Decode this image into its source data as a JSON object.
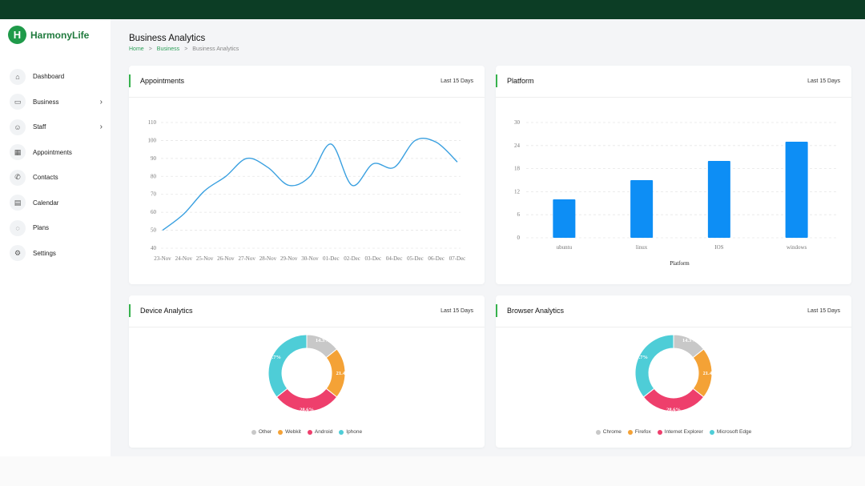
{
  "brand": {
    "name": "HarmonyLife",
    "logo_glyph": "H"
  },
  "nav": [
    {
      "label": "Dashboard",
      "icon": "home-icon",
      "glyph": "⌂",
      "chevron": false
    },
    {
      "label": "Business",
      "icon": "card-icon",
      "glyph": "▭",
      "chevron": true
    },
    {
      "label": "Staff",
      "icon": "users-icon",
      "glyph": "☺",
      "chevron": true
    },
    {
      "label": "Appointments",
      "icon": "calendar-check-icon",
      "glyph": "▦",
      "chevron": false
    },
    {
      "label": "Contacts",
      "icon": "phone-icon",
      "glyph": "✆",
      "chevron": false
    },
    {
      "label": "Calendar",
      "icon": "calendar-icon",
      "glyph": "▤",
      "chevron": false
    },
    {
      "label": "Plans",
      "icon": "chat-icon",
      "glyph": "◌",
      "chevron": false
    },
    {
      "label": "Settings",
      "icon": "gear-icon",
      "glyph": "⚙",
      "chevron": false
    }
  ],
  "page": {
    "title": "Business Analytics",
    "breadcrumb": [
      "Home",
      "Business",
      "Business Analytics"
    ],
    "breadcrumb_sep": ">"
  },
  "cards": {
    "appointments": {
      "title": "Appointments",
      "range": "Last 15 Days"
    },
    "platform": {
      "title": "Platform",
      "range": "Last 15 Days"
    },
    "device": {
      "title": "Device Analytics",
      "range": "Last 15 Days"
    },
    "browser": {
      "title": "Browser Analytics",
      "range": "Last 15 Days"
    }
  },
  "colors": {
    "accent": "#37b24d",
    "line": "#3aa0e0",
    "bar": "#0d8ef5",
    "slices": [
      "#c8c8c8",
      "#f4a236",
      "#ee3f6c",
      "#4ecdd7"
    ]
  },
  "chart_data": [
    {
      "id": "appointments",
      "type": "line",
      "categories": [
        "23-Nov",
        "24-Nov",
        "25-Nov",
        "26-Nov",
        "27-Nov",
        "28-Nov",
        "29-Nov",
        "30-Nov",
        "01-Dec",
        "02-Dec",
        "03-Dec",
        "04-Dec",
        "05-Dec",
        "06-Dec",
        "07-Dec"
      ],
      "values": [
        50,
        59,
        72,
        80,
        90,
        85,
        75,
        80,
        98,
        75,
        87,
        85,
        100,
        99,
        88
      ],
      "ylim": [
        40,
        110
      ],
      "yticks": [
        40,
        50,
        60,
        70,
        80,
        90,
        100,
        110
      ],
      "grid": true
    },
    {
      "id": "platform",
      "type": "bar",
      "categories": [
        "ubuntu",
        "linux",
        "IOS",
        "windows"
      ],
      "values": [
        10,
        15,
        20,
        25
      ],
      "ylim": [
        0,
        30
      ],
      "yticks": [
        0,
        6,
        12,
        18,
        24,
        30
      ],
      "xlabel": "Platform",
      "grid": true
    },
    {
      "id": "device",
      "type": "pie",
      "categories": [
        "Other",
        "Webkit",
        "Android",
        "Iphone"
      ],
      "values": [
        14.3,
        21.4,
        28.6,
        35.7
      ],
      "labels": [
        "14.3%",
        "21.4%",
        "28.6%",
        "35.7%"
      ],
      "legend": "bottom"
    },
    {
      "id": "browser",
      "type": "pie",
      "categories": [
        "Chrome",
        "Firefox",
        "Internet Explorer",
        "Microsoft Edge"
      ],
      "values": [
        14.3,
        21.4,
        28.6,
        35.7
      ],
      "labels": [
        "14.3%",
        "21.4%",
        "28.6%",
        "35.7%"
      ],
      "legend": "bottom"
    }
  ]
}
